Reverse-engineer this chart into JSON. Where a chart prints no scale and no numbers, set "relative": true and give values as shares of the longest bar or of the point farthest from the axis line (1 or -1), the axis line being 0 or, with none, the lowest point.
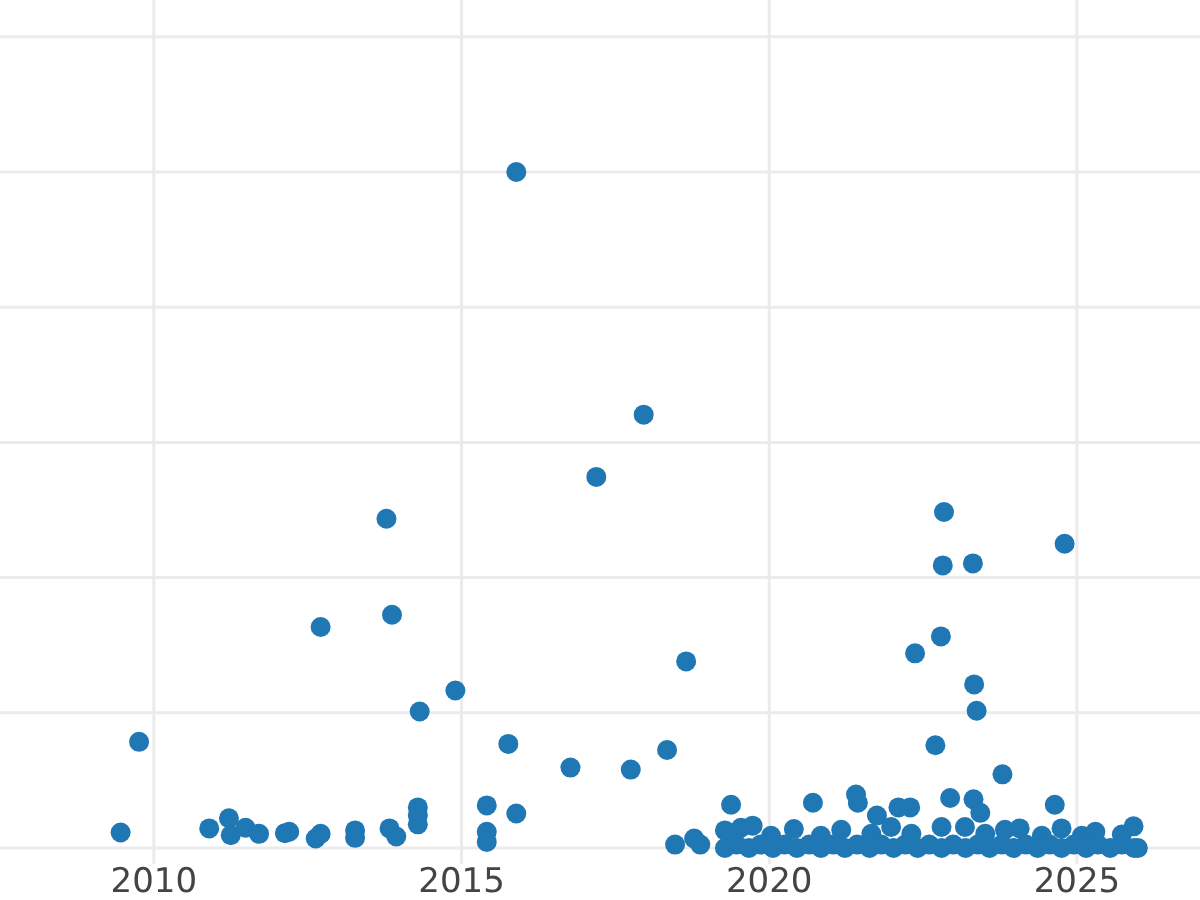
{
  "chart_data": {
    "type": "scatter",
    "relative": true,
    "color": "#1f77b4",
    "marker": "circle",
    "grid": true,
    "xlim": [
      2007.5,
      2027.0
    ],
    "xticks": [
      2010,
      2015,
      2020,
      2025
    ],
    "x": [
      2009.46,
      2009.76,
      2010.9,
      2011.22,
      2011.25,
      2011.49,
      2011.71,
      2012.13,
      2012.2,
      2012.63,
      2012.71,
      2012.71,
      2013.27,
      2013.27,
      2013.78,
      2013.83,
      2013.87,
      2013.94,
      2014.29,
      2014.29,
      2014.29,
      2014.32,
      2014.9,
      2015.41,
      2015.41,
      2015.41,
      2015.76,
      2015.89,
      2015.89,
      2016.77,
      2017.19,
      2017.75,
      2017.96,
      2018.34,
      2018.47,
      2018.65,
      2018.78,
      2018.88,
      2019.28,
      2019.38,
      2019.54,
      2019.73,
      2020.4,
      2020.71,
      2021.41,
      2021.44,
      2021.75,
      2022.1,
      2022.29,
      2022.37,
      2022.7,
      2022.79,
      2022.82,
      2022.84,
      2022.94,
      2023.31,
      2023.32,
      2023.33,
      2023.37,
      2023.43,
      2023.79,
      2024.07,
      2024.64,
      2024.75,
      2024.8,
      2025.92,
      2020.03,
      2020.84,
      2021.17,
      2021.66,
      2021.98,
      2022.31,
      2022.8,
      2023.18,
      2023.51,
      2023.83,
      2024.43,
      2025.08,
      2025.3,
      2025.73,
      2019.28,
      2019.47,
      2019.67,
      2019.86,
      2020.06,
      2020.25,
      2020.45,
      2020.65,
      2020.84,
      2021.04,
      2021.23,
      2021.43,
      2021.63,
      2021.82,
      2022.02,
      2022.21,
      2022.41,
      2022.6,
      2022.8,
      2022.99,
      2023.19,
      2023.39,
      2023.58,
      2023.78,
      2023.97,
      2024.17,
      2024.36,
      2024.56,
      2024.75,
      2024.95,
      2025.15,
      2025.34,
      2025.54,
      2025.73,
      2025.93,
      2025.99
    ],
    "values": [
      0.023,
      0.157,
      0.029,
      0.044,
      0.019,
      0.03,
      0.021,
      0.022,
      0.024,
      0.014,
      0.021,
      0.327,
      0.026,
      0.015,
      0.487,
      0.029,
      0.345,
      0.017,
      0.06,
      0.048,
      0.035,
      0.202,
      0.233,
      0.063,
      0.024,
      0.009,
      0.154,
      0.051,
      1,
      0.119,
      0.549,
      0.116,
      0.641,
      0.145,
      0.005,
      0.276,
      0.014,
      0.005,
      0.026,
      0.064,
      0.03,
      0.033,
      0.028,
      0.067,
      0.079,
      0.067,
      0.048,
      0.06,
      0.06,
      0.288,
      0.152,
      0.313,
      0.418,
      0.497,
      0.074,
      0.421,
      0.072,
      0.242,
      0.203,
      0.052,
      0.109,
      0.029,
      0.064,
      0.029,
      0.45,
      0.032,
      0.018,
      0.018,
      0.027,
      0.021,
      0.031,
      0.021,
      0.031,
      0.031,
      0.021,
      0.027,
      0.018,
      0.018,
      0.024,
      0.02,
      0,
      0.005,
      0,
      0.005,
      0,
      0.005,
      0,
      0.005,
      0,
      0.005,
      0,
      0.005,
      0,
      0.005,
      0,
      0.005,
      0,
      0.005,
      0,
      0.005,
      0,
      0.005,
      0,
      0.005,
      0,
      0.005,
      0,
      0.005,
      0,
      0.005,
      0,
      0.005,
      0,
      0.005,
      0,
      0
    ]
  }
}
